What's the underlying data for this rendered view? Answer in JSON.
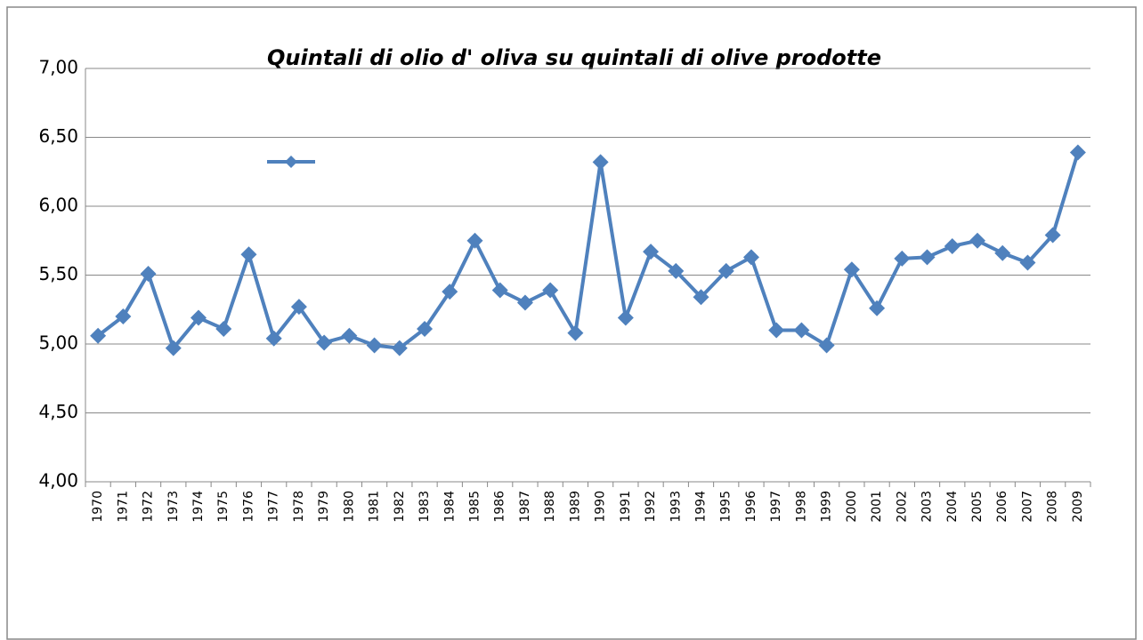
{
  "chart_data": {
    "type": "line",
    "title": "Quintali di olio d' oliva su quintali di olive prodotte",
    "categories": [
      "1970",
      "1971",
      "1972",
      "1973",
      "1974",
      "1975",
      "1976",
      "1977",
      "1978",
      "1979",
      "1980",
      "1981",
      "1982",
      "1983",
      "1984",
      "1985",
      "1986",
      "1987",
      "1988",
      "1989",
      "1990",
      "1991",
      "1992",
      "1993",
      "1994",
      "1995",
      "1996",
      "1997",
      "1998",
      "1999",
      "2000",
      "2001",
      "2002",
      "2003",
      "2004",
      "2005",
      "2006",
      "2007",
      "2008",
      "2009"
    ],
    "series": [
      {
        "color": "#4f81bd",
        "values": [
          5.06,
          5.2,
          5.51,
          4.97,
          5.19,
          5.11,
          5.65,
          5.04,
          5.27,
          5.01,
          5.06,
          4.99,
          4.97,
          5.11,
          5.38,
          5.75,
          5.39,
          5.3,
          5.39,
          5.08,
          6.32,
          5.19,
          5.67,
          5.53,
          5.34,
          5.53,
          5.63,
          5.1,
          5.1,
          4.99,
          5.54,
          5.26,
          5.62,
          5.63,
          5.71,
          5.75,
          5.66,
          5.59,
          5.79,
          6.39
        ]
      }
    ],
    "ylim": [
      4,
      7
    ],
    "yticks": [
      {
        "value": 4,
        "label": "4,00"
      },
      {
        "value": 4.5,
        "label": "4,50"
      },
      {
        "value": 5,
        "label": "5,00"
      },
      {
        "value": 5.5,
        "label": "5,50"
      },
      {
        "value": 6,
        "label": "6,00"
      },
      {
        "value": 6.5,
        "label": "6,50"
      },
      {
        "value": 7,
        "label": "7,00"
      }
    ],
    "grid": true
  }
}
